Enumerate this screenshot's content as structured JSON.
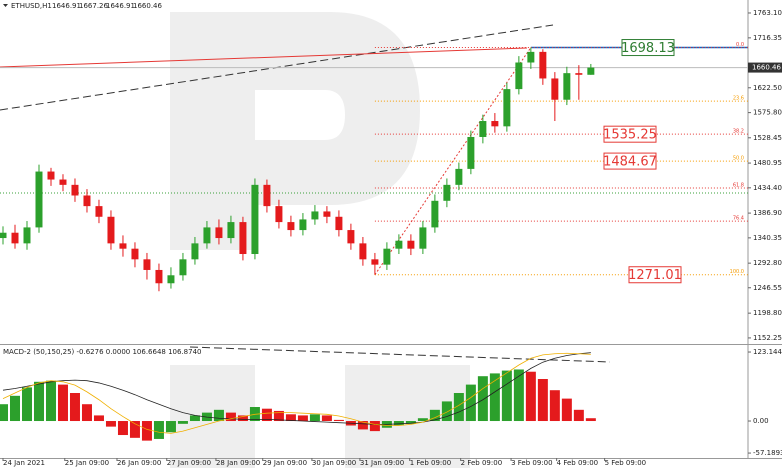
{
  "chart_data": {
    "type": "candlestick",
    "symbol": "ETHUSD,H1",
    "indicator": "MACD-2 (50,150,25) -0.6276 0.0000 106.6648 106.8740",
    "x": [
      0,
      2,
      4,
      6,
      8,
      10,
      12,
      14,
      16,
      18,
      20,
      22,
      24,
      26,
      28,
      30,
      32,
      34,
      36,
      38,
      40,
      42,
      44,
      46,
      48,
      50,
      52,
      54,
      56,
      58,
      60,
      62,
      64,
      66,
      68,
      70,
      72,
      74,
      76,
      78,
      80,
      82,
      84,
      86,
      88,
      90,
      92,
      94,
      96,
      98
    ],
    "open": [
      1340,
      1350,
      1330,
      1360,
      1465,
      1450,
      1440,
      1420,
      1400,
      1380,
      1330,
      1320,
      1300,
      1280,
      1255,
      1270,
      1300,
      1330,
      1360,
      1340,
      1370,
      1310,
      1440,
      1400,
      1370,
      1355,
      1375,
      1390,
      1380,
      1355,
      1330,
      1300,
      1290,
      1320,
      1335,
      1320,
      1360,
      1410,
      1440,
      1470,
      1530,
      1560,
      1550,
      1620,
      1670,
      1690,
      1640,
      1600,
      1650,
      1646.91
    ],
    "high": [
      1362,
      1365,
      1372,
      1478,
      1472,
      1460,
      1452,
      1432,
      1412,
      1392,
      1345,
      1332,
      1312,
      1292,
      1285,
      1312,
      1342,
      1372,
      1375,
      1382,
      1380,
      1452,
      1450,
      1412,
      1382,
      1387,
      1402,
      1400,
      1392,
      1367,
      1342,
      1312,
      1332,
      1347,
      1347,
      1372,
      1422,
      1452,
      1482,
      1542,
      1572,
      1575,
      1632,
      1682,
      1698.13,
      1695,
      1652,
      1662,
      1665,
      1667.26
    ],
    "low": [
      1328,
      1320,
      1318,
      1350,
      1438,
      1428,
      1408,
      1388,
      1368,
      1318,
      1305,
      1285,
      1262,
      1240,
      1245,
      1260,
      1290,
      1320,
      1328,
      1330,
      1298,
      1300,
      1388,
      1358,
      1343,
      1345,
      1365,
      1368,
      1343,
      1318,
      1288,
      1271.01,
      1280,
      1310,
      1308,
      1310,
      1350,
      1398,
      1430,
      1460,
      1518,
      1538,
      1540,
      1610,
      1658,
      1628,
      1560,
      1590,
      1600,
      1646.91
    ],
    "close": [
      1350,
      1330,
      1360,
      1465,
      1450,
      1440,
      1420,
      1400,
      1380,
      1330,
      1320,
      1300,
      1280,
      1255,
      1270,
      1300,
      1330,
      1360,
      1340,
      1370,
      1310,
      1440,
      1400,
      1370,
      1355,
      1375,
      1390,
      1380,
      1355,
      1330,
      1300,
      1290,
      1320,
      1335,
      1320,
      1360,
      1410,
      1440,
      1470,
      1530,
      1560,
      1550,
      1620,
      1670,
      1690,
      1640,
      1600,
      1650,
      1646.91,
      1660.46
    ],
    "up_color": "#2ca02c",
    "down_color": "#e41a1c",
    "xlim": [
      -0.5,
      124.2
    ],
    "xticks": [
      {
        "value": 0,
        "label": "24 Jan 2021"
      },
      {
        "value": 10.3,
        "label": "25 Jan 09:00"
      },
      {
        "value": 19,
        "label": "26 Jan 09:00"
      },
      {
        "value": 27.3,
        "label": "27 Jan 09:00"
      },
      {
        "value": 35.5,
        "label": "28 Jan 09:00"
      },
      {
        "value": 43.3,
        "label": "29 Jan 09:00"
      },
      {
        "value": 51.5,
        "label": "30 Jan 09:00"
      },
      {
        "value": 59.5,
        "label": "31 Jan 09:00"
      },
      {
        "value": 67.8,
        "label": "1 Feb 09:00"
      },
      {
        "value": 76.3,
        "label": "2 Feb 09:00"
      },
      {
        "value": 84.7,
        "label": "3 Feb 09:00"
      },
      {
        "value": 92.3,
        "label": "4 Feb 09:00"
      },
      {
        "value": 100.3,
        "label": "5 Feb 09:00"
      }
    ],
    "ylim": [
      1142.7,
      1787.5
    ],
    "yticks": [
      {
        "value": 1763.1,
        "label": "1763.10"
      },
      1716.35,
      {
        "value": 1622.5,
        "label": "1622.50"
      },
      {
        "value": 1575.8,
        "label": "1575.80"
      },
      1528.45,
      1480.95,
      {
        "value": 1434.4,
        "label": "1434.40"
      },
      {
        "value": 1386.9,
        "label": "1386.90"
      },
      1340.35,
      {
        "value": 1292.8,
        "label": "1292.80"
      },
      1246.55,
      {
        "value": 1198.8,
        "label": "1198.80"
      },
      1152.25
    ],
    "fib": [
      {
        "level": "0.0",
        "price": 1698.13,
        "color": "#e53935",
        "boxed": true,
        "box_color": "#2e7d32"
      },
      {
        "level": "23.6",
        "price": 1597.3,
        "color": "#f59b00",
        "boxed": false
      },
      {
        "level": "38.2",
        "price": 1535.25,
        "color": "#e53935",
        "boxed": true,
        "box_color": "#e53935"
      },
      {
        "level": "50.0",
        "price": 1484.67,
        "color": "#f59b00",
        "boxed": true,
        "box_color": "#e53935"
      },
      {
        "level": "61.8",
        "price": 1434.17,
        "color": "#e53935",
        "boxed": false
      },
      {
        "level": "76.4",
        "price": 1371.8,
        "color": "#e53935",
        "boxed": false
      },
      {
        "level": "100.0",
        "price": 1271.01,
        "color": "#f59b00",
        "boxed": true,
        "box_color": "#e53935"
      }
    ],
    "macd": {
      "histogram": [
        30,
        45,
        60,
        70,
        72,
        65,
        50,
        30,
        10,
        -10,
        -25,
        -30,
        -35,
        -32,
        -20,
        -5,
        10,
        15,
        20,
        15,
        10,
        25,
        22,
        18,
        12,
        10,
        12,
        10,
        2,
        -8,
        -15,
        -18,
        -12,
        -8,
        -5,
        5,
        20,
        35,
        50,
        65,
        80,
        85,
        90,
        92,
        88,
        75,
        55,
        40,
        20,
        5
      ],
      "signal": [
        40,
        50,
        60,
        68,
        72,
        70,
        64,
        52,
        38,
        22,
        8,
        -5,
        -15,
        -20,
        -22,
        -18,
        -12,
        -6,
        0,
        4,
        8,
        12,
        14,
        15,
        15,
        14,
        13,
        12,
        9,
        4,
        -2,
        -6,
        -8,
        -8,
        -6,
        -2,
        6,
        16,
        28,
        42,
        58,
        72,
        86,
        100,
        112,
        118,
        120,
        121,
        120,
        119
      ],
      "main": [
        55,
        58,
        62,
        66,
        70,
        72,
        73,
        72,
        68,
        62,
        55,
        47,
        38,
        30,
        22,
        15,
        10,
        7,
        5,
        4,
        3,
        3,
        3,
        2,
        1,
        0,
        -1,
        -2,
        -3,
        -4,
        -5,
        -6,
        -6,
        -5,
        -4,
        -2,
        2,
        8,
        16,
        26,
        38,
        52,
        66,
        80,
        94,
        105,
        112,
        117,
        120,
        122
      ],
      "signal_color": "#f0b000",
      "main_color": "#222",
      "ylim": [
        -66,
        133.9
      ],
      "yticks": [
        123.1442,
        {
          "value": 0,
          "label": "0.00"
        },
        -57.1893
      ]
    }
  }
}
